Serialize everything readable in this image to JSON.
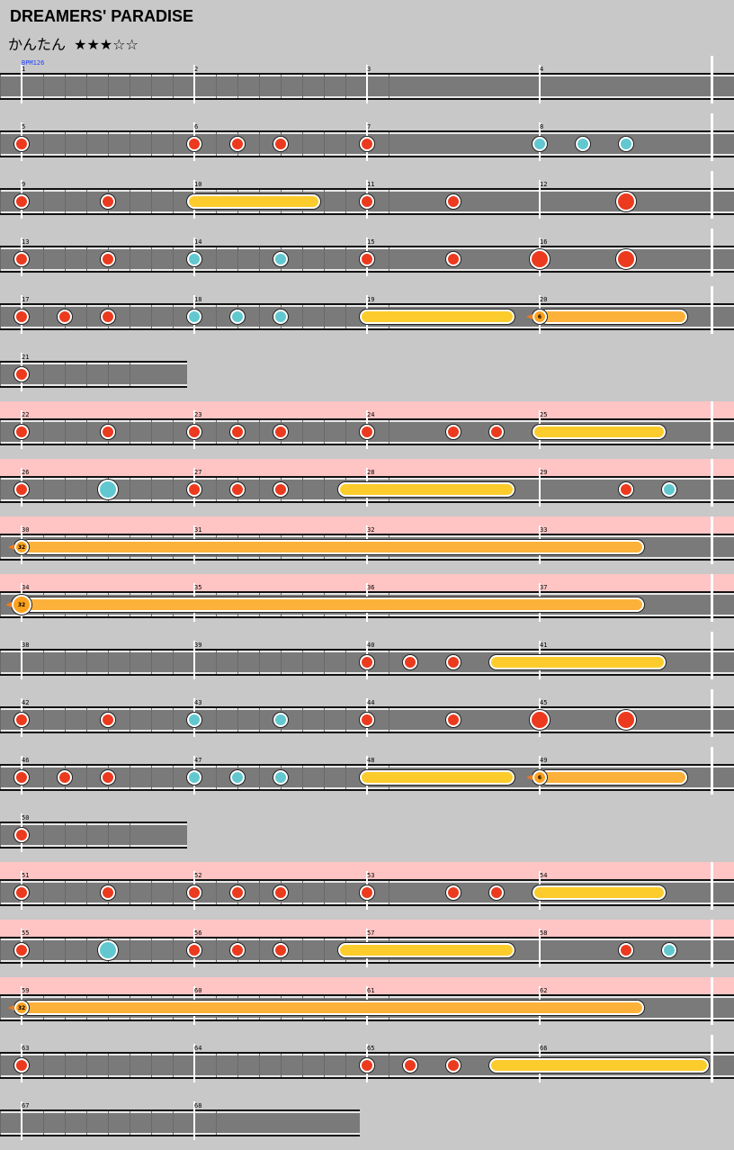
{
  "song": {
    "title": "DREAMERS' PARADISE",
    "difficulty": "かんたん",
    "stars": "★★★☆☆",
    "bpm": "BPM126"
  },
  "colors": {
    "background": "#c8c8c8",
    "gogo": "#ffc4c4",
    "lane": "#7a7a7a",
    "don": "#ec3a1e",
    "ka": "#62c8d0",
    "drumroll": "#fccc2c",
    "balloon": "#fca21e"
  },
  "chart_data": {
    "type": "taiko-score",
    "beats_per_measure": 4,
    "measures_per_row": 4,
    "note_legend": {
      "don": "red small note",
      "ka": "blue small note",
      "DON": "red big note",
      "KA": "blue big note",
      "roll": "yellow drumroll (start beat to end beat)",
      "balloon": "balloon roll with hit count"
    },
    "rows": [
      {
        "measures": [
          1,
          2,
          3,
          4
        ],
        "gogo": false,
        "notes": []
      },
      {
        "measures": [
          5,
          6,
          7,
          8
        ],
        "gogo": false,
        "notes": [
          {
            "t": "don",
            "b": 0
          },
          {
            "t": "don",
            "b": 4
          },
          {
            "t": "don",
            "b": 5
          },
          {
            "t": "don",
            "b": 6
          },
          {
            "t": "don",
            "b": 8
          },
          {
            "t": "ka",
            "b": 12
          },
          {
            "t": "ka",
            "b": 13
          },
          {
            "t": "ka",
            "b": 14
          }
        ]
      },
      {
        "measures": [
          9,
          10,
          11,
          12
        ],
        "gogo": false,
        "notes": [
          {
            "t": "don",
            "b": 0
          },
          {
            "t": "don",
            "b": 2
          },
          {
            "t": "roll",
            "b": 4,
            "e": 6.75
          },
          {
            "t": "don",
            "b": 8
          },
          {
            "t": "don",
            "b": 10
          },
          {
            "t": "DON",
            "b": 14
          }
        ]
      },
      {
        "measures": [
          13,
          14,
          15,
          16
        ],
        "gogo": false,
        "notes": [
          {
            "t": "don",
            "b": 0
          },
          {
            "t": "don",
            "b": 2
          },
          {
            "t": "ka",
            "b": 4
          },
          {
            "t": "ka",
            "b": 6
          },
          {
            "t": "don",
            "b": 8
          },
          {
            "t": "don",
            "b": 10
          },
          {
            "t": "DON",
            "b": 12
          },
          {
            "t": "DON",
            "b": 14
          }
        ]
      },
      {
        "measures": [
          17,
          18,
          19,
          20
        ],
        "gogo": false,
        "notes": [
          {
            "t": "don",
            "b": 0
          },
          {
            "t": "don",
            "b": 1
          },
          {
            "t": "don",
            "b": 2
          },
          {
            "t": "ka",
            "b": 4
          },
          {
            "t": "ka",
            "b": 5
          },
          {
            "t": "ka",
            "b": 6
          },
          {
            "t": "roll",
            "b": 8,
            "e": 11.25
          },
          {
            "t": "balloon",
            "b": 12,
            "e": 15.25,
            "count": 6,
            "size": 16
          }
        ]
      },
      {
        "measures": [
          21
        ],
        "gogo": false,
        "notes": [
          {
            "t": "don",
            "b": 0
          }
        ]
      },
      {
        "measures": [
          22,
          23,
          24,
          25
        ],
        "gogo": true,
        "notes": [
          {
            "t": "don",
            "b": 0
          },
          {
            "t": "don",
            "b": 2
          },
          {
            "t": "don",
            "b": 4
          },
          {
            "t": "don",
            "b": 5
          },
          {
            "t": "don",
            "b": 6
          },
          {
            "t": "don",
            "b": 8
          },
          {
            "t": "don",
            "b": 10
          },
          {
            "t": "don",
            "b": 11
          },
          {
            "t": "roll",
            "b": 12,
            "e": 14.75
          }
        ]
      },
      {
        "measures": [
          26,
          27,
          28,
          29
        ],
        "gogo": true,
        "notes": [
          {
            "t": "don",
            "b": 0
          },
          {
            "t": "KA",
            "b": 2
          },
          {
            "t": "don",
            "b": 4
          },
          {
            "t": "don",
            "b": 5
          },
          {
            "t": "don",
            "b": 6
          },
          {
            "t": "roll",
            "b": 7.5,
            "e": 11.25
          },
          {
            "t": "don",
            "b": 14
          },
          {
            "t": "ka",
            "b": 15
          }
        ]
      },
      {
        "measures": [
          30,
          31,
          32,
          33
        ],
        "gogo": true,
        "notes": [
          {
            "t": "balloon",
            "b": 0,
            "e": 14.25,
            "count": 32,
            "size": 16
          }
        ]
      },
      {
        "measures": [
          34,
          35,
          36,
          37
        ],
        "gogo": true,
        "notes": [
          {
            "t": "balloon",
            "b": 0,
            "e": 14.25,
            "count": 32,
            "size": 22
          }
        ]
      },
      {
        "measures": [
          38,
          39,
          40,
          41
        ],
        "gogo": false,
        "notes": [
          {
            "t": "don",
            "b": 8
          },
          {
            "t": "don",
            "b": 9
          },
          {
            "t": "don",
            "b": 10
          },
          {
            "t": "roll",
            "b": 11,
            "e": 14.75
          }
        ]
      },
      {
        "measures": [
          42,
          43,
          44,
          45
        ],
        "gogo": false,
        "notes": [
          {
            "t": "don",
            "b": 0
          },
          {
            "t": "don",
            "b": 2
          },
          {
            "t": "ka",
            "b": 4
          },
          {
            "t": "ka",
            "b": 6
          },
          {
            "t": "don",
            "b": 8
          },
          {
            "t": "don",
            "b": 10
          },
          {
            "t": "DON",
            "b": 12
          },
          {
            "t": "DON",
            "b": 14
          }
        ]
      },
      {
        "measures": [
          46,
          47,
          48,
          49
        ],
        "gogo": false,
        "notes": [
          {
            "t": "don",
            "b": 0
          },
          {
            "t": "don",
            "b": 1
          },
          {
            "t": "don",
            "b": 2
          },
          {
            "t": "ka",
            "b": 4
          },
          {
            "t": "ka",
            "b": 5
          },
          {
            "t": "ka",
            "b": 6
          },
          {
            "t": "roll",
            "b": 8,
            "e": 11.25
          },
          {
            "t": "balloon",
            "b": 12,
            "e": 15.25,
            "count": 6,
            "size": 16
          }
        ]
      },
      {
        "measures": [
          50
        ],
        "gogo": false,
        "notes": [
          {
            "t": "don",
            "b": 0
          }
        ]
      },
      {
        "measures": [
          51,
          52,
          53,
          54
        ],
        "gogo": true,
        "notes": [
          {
            "t": "don",
            "b": 0
          },
          {
            "t": "don",
            "b": 2
          },
          {
            "t": "don",
            "b": 4
          },
          {
            "t": "don",
            "b": 5
          },
          {
            "t": "don",
            "b": 6
          },
          {
            "t": "don",
            "b": 8
          },
          {
            "t": "don",
            "b": 10
          },
          {
            "t": "don",
            "b": 11
          },
          {
            "t": "roll",
            "b": 12,
            "e": 14.75
          }
        ]
      },
      {
        "measures": [
          55,
          56,
          57,
          58
        ],
        "gogo": true,
        "notes": [
          {
            "t": "don",
            "b": 0
          },
          {
            "t": "KA",
            "b": 2
          },
          {
            "t": "don",
            "b": 4
          },
          {
            "t": "don",
            "b": 5
          },
          {
            "t": "don",
            "b": 6
          },
          {
            "t": "roll",
            "b": 7.5,
            "e": 11.25
          },
          {
            "t": "don",
            "b": 14
          },
          {
            "t": "ka",
            "b": 15
          }
        ]
      },
      {
        "measures": [
          59,
          60,
          61,
          62
        ],
        "gogo": true,
        "notes": [
          {
            "t": "balloon",
            "b": 0,
            "e": 14.25,
            "count": 32,
            "size": 16
          }
        ]
      },
      {
        "measures": [
          63,
          64,
          65,
          66
        ],
        "gogo": false,
        "notes": [
          {
            "t": "don",
            "b": 0
          },
          {
            "t": "don",
            "b": 8
          },
          {
            "t": "don",
            "b": 9
          },
          {
            "t": "don",
            "b": 10
          },
          {
            "t": "roll",
            "b": 11,
            "e": 15.75
          }
        ]
      },
      {
        "measures": [
          67,
          68
        ],
        "gogo": false,
        "notes": []
      }
    ]
  }
}
